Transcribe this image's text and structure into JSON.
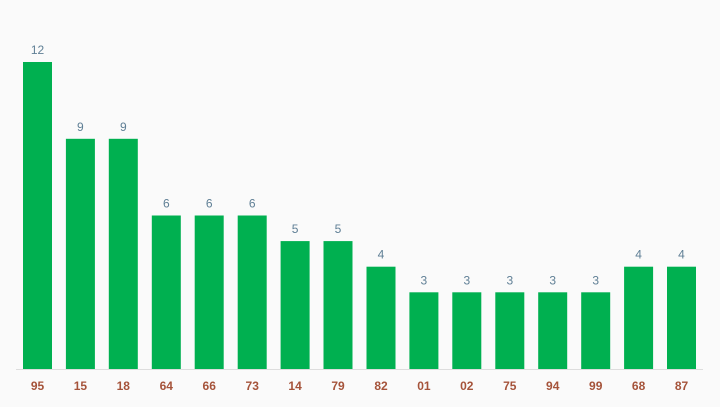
{
  "chart_data": {
    "type": "bar",
    "categories": [
      "95",
      "15",
      "18",
      "64",
      "66",
      "73",
      "14",
      "79",
      "82",
      "01",
      "02",
      "75",
      "94",
      "99",
      "68",
      "87"
    ],
    "values": [
      12,
      9,
      9,
      6,
      6,
      6,
      5,
      5,
      4,
      3,
      3,
      3,
      3,
      3,
      4,
      4
    ],
    "title": "",
    "xlabel": "",
    "ylabel": "",
    "ylim": [
      0,
      12
    ],
    "grid": false,
    "colors": {
      "bar": "#00b050",
      "value_label": "#5f7f95",
      "tick_label": "#a5533a",
      "baseline": "#dddddd"
    }
  }
}
